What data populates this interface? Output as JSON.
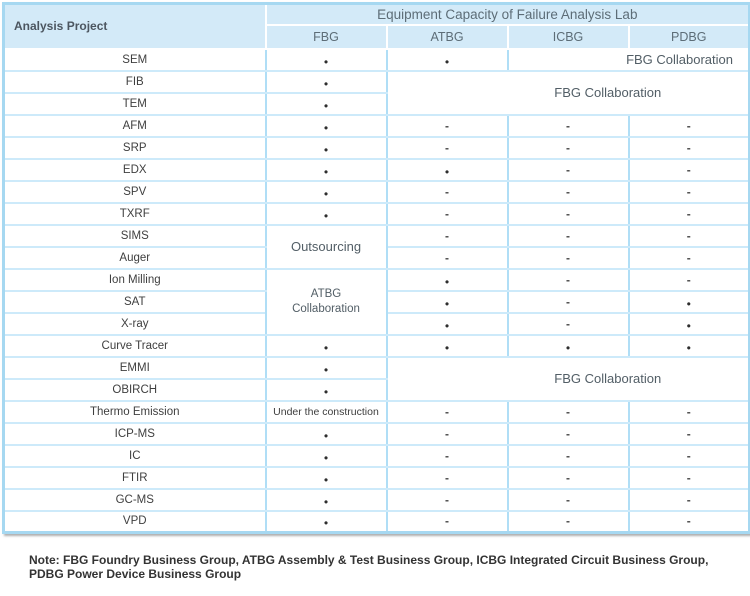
{
  "table": {
    "corner_header": "Analysis Project",
    "group_header": "Equipment Capacity of Failure Analysis Lab",
    "columns": [
      "FBG",
      "ATBG",
      "ICBG",
      "PDBG"
    ],
    "symbols": {
      "dot": "●",
      "dash": "-"
    },
    "rows": [
      {
        "label": "SEM",
        "cells": [
          {
            "type": "dot"
          },
          {
            "type": "dot"
          },
          {
            "type": "text",
            "text": "FBG Collaboration",
            "colspan": 2,
            "variant": "collab-right"
          }
        ]
      },
      {
        "label": "FIB",
        "cells": [
          {
            "type": "dot"
          },
          {
            "type": "text",
            "text": "FBG Collaboration",
            "colspan": 3,
            "rowspan": 2,
            "variant": "collab-wide"
          }
        ]
      },
      {
        "label": "TEM",
        "cells": [
          {
            "type": "dot"
          }
        ]
      },
      {
        "label": "AFM",
        "cells": [
          {
            "type": "dot"
          },
          {
            "type": "dash"
          },
          {
            "type": "dash"
          },
          {
            "type": "dash"
          }
        ]
      },
      {
        "label": "SRP",
        "cells": [
          {
            "type": "dot"
          },
          {
            "type": "dash"
          },
          {
            "type": "dash"
          },
          {
            "type": "dash"
          }
        ]
      },
      {
        "label": "EDX",
        "cells": [
          {
            "type": "dot"
          },
          {
            "type": "dot"
          },
          {
            "type": "dash"
          },
          {
            "type": "dash"
          }
        ]
      },
      {
        "label": "SPV",
        "cells": [
          {
            "type": "dot"
          },
          {
            "type": "dash"
          },
          {
            "type": "dash"
          },
          {
            "type": "dash"
          }
        ]
      },
      {
        "label": "TXRF",
        "cells": [
          {
            "type": "dot"
          },
          {
            "type": "dash"
          },
          {
            "type": "dash"
          },
          {
            "type": "dash"
          }
        ]
      },
      {
        "label": "SIMS",
        "cells": [
          {
            "type": "text",
            "text": "Outsourcing",
            "rowspan": 2,
            "variant": "outsourcing"
          },
          {
            "type": "dash"
          },
          {
            "type": "dash"
          },
          {
            "type": "dash"
          }
        ]
      },
      {
        "label": "Auger",
        "cells": [
          {
            "type": "dash"
          },
          {
            "type": "dash"
          },
          {
            "type": "dash"
          }
        ]
      },
      {
        "label": "Ion Milling",
        "cells": [
          {
            "type": "text",
            "text": "ATBG\nCollaboration",
            "rowspan": 3,
            "variant": "atbg-collab"
          },
          {
            "type": "dot"
          },
          {
            "type": "dash"
          },
          {
            "type": "dash"
          }
        ]
      },
      {
        "label": "SAT",
        "cells": [
          {
            "type": "dot"
          },
          {
            "type": "dash"
          },
          {
            "type": "dot"
          }
        ]
      },
      {
        "label": "X-ray",
        "cells": [
          {
            "type": "dot"
          },
          {
            "type": "dash"
          },
          {
            "type": "dot"
          }
        ]
      },
      {
        "label": "Curve Tracer",
        "cells": [
          {
            "type": "dot"
          },
          {
            "type": "dot"
          },
          {
            "type": "dot"
          },
          {
            "type": "dot"
          }
        ]
      },
      {
        "label": "EMMI",
        "cells": [
          {
            "type": "dot"
          },
          {
            "type": "text",
            "text": "FBG Collaboration",
            "colspan": 3,
            "rowspan": 2,
            "variant": "collab-wide"
          }
        ]
      },
      {
        "label": "OBIRCH",
        "cells": [
          {
            "type": "dot"
          }
        ]
      },
      {
        "label": "Thermo Emission",
        "cells": [
          {
            "type": "text",
            "text": "Under the construction",
            "variant": "construction"
          },
          {
            "type": "dash"
          },
          {
            "type": "dash"
          },
          {
            "type": "dash"
          }
        ]
      },
      {
        "label": "ICP-MS",
        "cells": [
          {
            "type": "dot"
          },
          {
            "type": "dash"
          },
          {
            "type": "dash"
          },
          {
            "type": "dash"
          }
        ]
      },
      {
        "label": "IC",
        "cells": [
          {
            "type": "dot"
          },
          {
            "type": "dash"
          },
          {
            "type": "dash"
          },
          {
            "type": "dash"
          }
        ]
      },
      {
        "label": "FTIR",
        "cells": [
          {
            "type": "dot"
          },
          {
            "type": "dash"
          },
          {
            "type": "dash"
          },
          {
            "type": "dash"
          }
        ]
      },
      {
        "label": "GC-MS",
        "cells": [
          {
            "type": "dot"
          },
          {
            "type": "dash"
          },
          {
            "type": "dash"
          },
          {
            "type": "dash"
          }
        ]
      },
      {
        "label": "VPD",
        "cells": [
          {
            "type": "dot"
          },
          {
            "type": "dash"
          },
          {
            "type": "dash"
          },
          {
            "type": "dash"
          }
        ]
      }
    ]
  },
  "note": {
    "line1": "Note: FBG Foundry Business Group, ATBG Assembly & Test Business Group, ICBG Integrated Circuit Business Group,",
    "line2": "PDBG Power Device Business Group"
  },
  "colors": {
    "header_fill": "#d3eaf8",
    "outer_border": "#a6d8f1",
    "row_border_h": "#cdeafa",
    "row_border_v": "#b0def6",
    "header_text": "#5d6d77",
    "body_text": "#3f3f3f"
  }
}
